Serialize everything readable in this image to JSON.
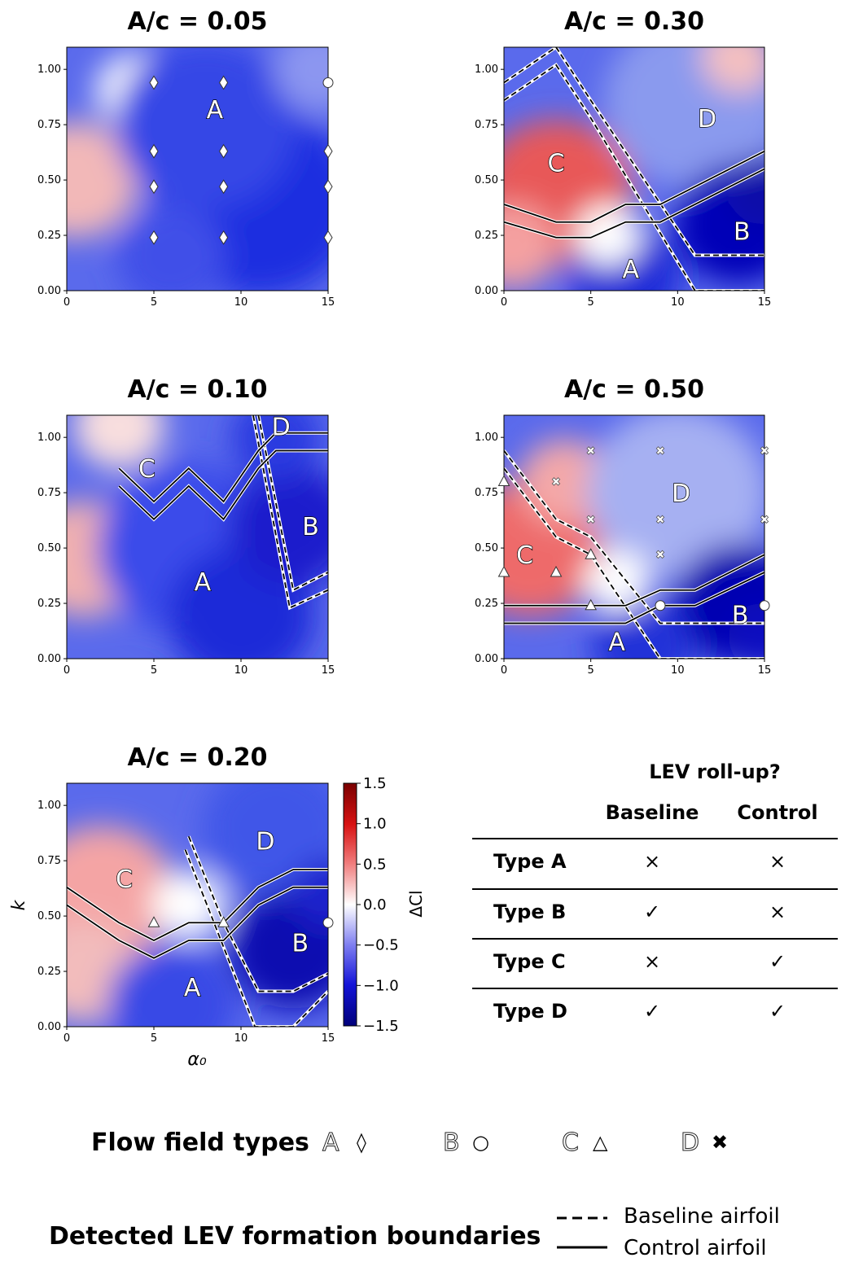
{
  "chart_data": [
    {
      "type": "heatmap",
      "title": "A/c = 0.05",
      "xlim": [
        0,
        15
      ],
      "ylim": [
        0,
        1.1
      ],
      "xticks": [
        "0",
        "5",
        "10",
        "15"
      ],
      "yticks": [
        "0.00",
        "0.25",
        "0.50",
        "0.75",
        "1.00"
      ],
      "regions": [
        {
          "label": "A",
          "x": 8.5,
          "k": 0.82
        }
      ],
      "markers": [
        {
          "type": "diamond",
          "x": 5,
          "k": 0.94
        },
        {
          "type": "diamond",
          "x": 9,
          "k": 0.94
        },
        {
          "type": "circle",
          "x": 15,
          "k": 0.94
        },
        {
          "type": "diamond",
          "x": 5,
          "k": 0.63
        },
        {
          "type": "diamond",
          "x": 9,
          "k": 0.63
        },
        {
          "type": "diamond",
          "x": 15,
          "k": 0.63
        },
        {
          "type": "diamond",
          "x": 5,
          "k": 0.47
        },
        {
          "type": "diamond",
          "x": 9,
          "k": 0.47
        },
        {
          "type": "diamond",
          "x": 15,
          "k": 0.47
        },
        {
          "type": "diamond",
          "x": 5,
          "k": 0.24
        },
        {
          "type": "diamond",
          "x": 9,
          "k": 0.24
        },
        {
          "type": "diamond",
          "x": 15,
          "k": 0.24
        }
      ],
      "baseline_boundaries": [],
      "control_boundaries": []
    },
    {
      "type": "heatmap",
      "title": "A/c = 0.30",
      "xlim": [
        0,
        15
      ],
      "ylim": [
        0,
        1.1
      ],
      "xticks": [
        "0",
        "5",
        "10",
        "15"
      ],
      "yticks": [
        "0.00",
        "0.25",
        "0.50",
        "0.75",
        "1.00"
      ],
      "regions": [
        {
          "label": "C",
          "x": 3,
          "k": 0.58
        },
        {
          "label": "D",
          "x": 11.7,
          "k": 0.78
        },
        {
          "label": "B",
          "x": 13.7,
          "k": 0.27
        },
        {
          "label": "A",
          "x": 7.3,
          "k": 0.1
        }
      ],
      "markers": [],
      "baseline_boundaries": [
        [
          [
            0,
            0.94
          ],
          [
            3,
            1.1
          ],
          [
            5,
            0.86
          ],
          [
            11,
            0.16
          ],
          [
            15,
            0.16
          ]
        ],
        [
          [
            0,
            0.86
          ],
          [
            3,
            1.02
          ],
          [
            5,
            0.78
          ],
          [
            11,
            0.0
          ],
          [
            15,
            0.0
          ]
        ]
      ],
      "control_boundaries": [
        [
          [
            0,
            0.39
          ],
          [
            3,
            0.31
          ],
          [
            5,
            0.31
          ],
          [
            7,
            0.39
          ],
          [
            9,
            0.39
          ],
          [
            15,
            0.63
          ]
        ],
        [
          [
            0,
            0.31
          ],
          [
            3,
            0.24
          ],
          [
            5,
            0.24
          ],
          [
            7,
            0.31
          ],
          [
            9,
            0.31
          ],
          [
            15,
            0.55
          ]
        ]
      ]
    },
    {
      "type": "heatmap",
      "title": "A/c = 0.10",
      "xlim": [
        0,
        15
      ],
      "ylim": [
        0,
        1.1
      ],
      "xticks": [
        "0",
        "5",
        "10",
        "15"
      ],
      "yticks": [
        "0.00",
        "0.25",
        "0.50",
        "0.75",
        "1.00"
      ],
      "regions": [
        {
          "label": "C",
          "x": 4.6,
          "k": 0.86
        },
        {
          "label": "D",
          "x": 12.3,
          "k": 1.05
        },
        {
          "label": "B",
          "x": 14.0,
          "k": 0.6
        },
        {
          "label": "A",
          "x": 7.8,
          "k": 0.35
        }
      ],
      "markers": [],
      "baseline_boundaries": [
        [
          [
            11.0,
            1.1
          ],
          [
            13,
            0.31
          ],
          [
            15,
            0.39
          ]
        ],
        [
          [
            10.7,
            1.1
          ],
          [
            12.8,
            0.23
          ],
          [
            15,
            0.31
          ]
        ]
      ],
      "control_boundaries": [
        [
          [
            3,
            0.86
          ],
          [
            5,
            0.71
          ],
          [
            7,
            0.86
          ],
          [
            9,
            0.71
          ],
          [
            11,
            0.94
          ],
          [
            12,
            1.02
          ],
          [
            15,
            1.02
          ]
        ],
        [
          [
            3,
            0.78
          ],
          [
            5,
            0.63
          ],
          [
            7,
            0.78
          ],
          [
            9,
            0.63
          ],
          [
            11,
            0.86
          ],
          [
            12,
            0.94
          ],
          [
            15,
            0.94
          ]
        ]
      ]
    },
    {
      "type": "heatmap",
      "title": "A/c = 0.50",
      "xlim": [
        0,
        15
      ],
      "ylim": [
        0,
        1.1
      ],
      "xticks": [
        "0",
        "5",
        "10",
        "15"
      ],
      "yticks": [
        "0.00",
        "0.25",
        "0.50",
        "0.75",
        "1.00"
      ],
      "regions": [
        {
          "label": "C",
          "x": 1.2,
          "k": 0.47
        },
        {
          "label": "D",
          "x": 10.2,
          "k": 0.75
        },
        {
          "label": "B",
          "x": 13.6,
          "k": 0.2
        },
        {
          "label": "A",
          "x": 6.5,
          "k": 0.08
        }
      ],
      "markers": [
        {
          "type": "triangle",
          "x": 0,
          "k": 0.8
        },
        {
          "type": "cross",
          "x": 5,
          "k": 0.94
        },
        {
          "type": "cross",
          "x": 9,
          "k": 0.94
        },
        {
          "type": "cross",
          "x": 15,
          "k": 0.94
        },
        {
          "type": "cross",
          "x": 3,
          "k": 0.8
        },
        {
          "type": "cross",
          "x": 5,
          "k": 0.63
        },
        {
          "type": "cross",
          "x": 9,
          "k": 0.63
        },
        {
          "type": "cross",
          "x": 15,
          "k": 0.63
        },
        {
          "type": "triangle",
          "x": 5,
          "k": 0.47
        },
        {
          "type": "cross",
          "x": 9,
          "k": 0.47
        },
        {
          "type": "triangle",
          "x": 0,
          "k": 0.39
        },
        {
          "type": "triangle",
          "x": 3,
          "k": 0.39
        },
        {
          "type": "triangle",
          "x": 5,
          "k": 0.24
        },
        {
          "type": "circle",
          "x": 9,
          "k": 0.24
        },
        {
          "type": "circle",
          "x": 15,
          "k": 0.24
        }
      ],
      "baseline_boundaries": [
        [
          [
            0,
            0.94
          ],
          [
            3,
            0.63
          ],
          [
            5,
            0.55
          ],
          [
            9,
            0.16
          ],
          [
            15,
            0.16
          ]
        ],
        [
          [
            0,
            0.86
          ],
          [
            3,
            0.55
          ],
          [
            5,
            0.47
          ],
          [
            9,
            0.0
          ],
          [
            15,
            0.0
          ]
        ]
      ],
      "control_boundaries": [
        [
          [
            0,
            0.24
          ],
          [
            7,
            0.24
          ],
          [
            9,
            0.31
          ],
          [
            11,
            0.31
          ],
          [
            15,
            0.47
          ]
        ],
        [
          [
            0,
            0.16
          ],
          [
            7,
            0.16
          ],
          [
            9,
            0.24
          ],
          [
            11,
            0.24
          ],
          [
            15,
            0.39
          ]
        ]
      ]
    },
    {
      "type": "heatmap",
      "title": "A/c = 0.20",
      "xlabel": "α₀",
      "ylabel": "k",
      "xlim": [
        0,
        15
      ],
      "ylim": [
        0,
        1.1
      ],
      "xticks": [
        "0",
        "5",
        "10",
        "15"
      ],
      "yticks": [
        "0.00",
        "0.25",
        "0.50",
        "0.75",
        "1.00"
      ],
      "colorbar": {
        "label": "ΔCl",
        "range": [
          -1.5,
          1.5
        ],
        "ticks": [
          "1.5",
          "1.0",
          "0.5",
          "0.0",
          "−0.5",
          "−1.0",
          "−1.5"
        ]
      },
      "regions": [
        {
          "label": "C",
          "x": 3.3,
          "k": 0.67
        },
        {
          "label": "D",
          "x": 11.4,
          "k": 0.84
        },
        {
          "label": "B",
          "x": 13.4,
          "k": 0.38
        },
        {
          "label": "A",
          "x": 7.2,
          "k": 0.18
        }
      ],
      "markers": [
        {
          "type": "triangle",
          "x": 5,
          "k": 0.47
        },
        {
          "type": "triangle",
          "x": 9,
          "k": 0.47
        },
        {
          "type": "circle",
          "x": 15,
          "k": 0.47
        }
      ],
      "baseline_boundaries": [
        [
          [
            7,
            0.86
          ],
          [
            9,
            0.47
          ],
          [
            11,
            0.16
          ],
          [
            13,
            0.16
          ],
          [
            15,
            0.24
          ]
        ],
        [
          [
            6.8,
            0.8
          ],
          [
            8.8,
            0.4
          ],
          [
            10.8,
            0.0
          ],
          [
            13,
            0.0
          ],
          [
            15,
            0.16
          ]
        ]
      ],
      "control_boundaries": [
        [
          [
            0,
            0.63
          ],
          [
            3,
            0.47
          ],
          [
            5,
            0.39
          ],
          [
            7,
            0.47
          ],
          [
            9,
            0.47
          ],
          [
            11,
            0.63
          ],
          [
            13,
            0.71
          ],
          [
            15,
            0.71
          ]
        ],
        [
          [
            0,
            0.55
          ],
          [
            3,
            0.39
          ],
          [
            5,
            0.31
          ],
          [
            7,
            0.39
          ],
          [
            9,
            0.39
          ],
          [
            11,
            0.55
          ],
          [
            13,
            0.63
          ],
          [
            15,
            0.63
          ]
        ]
      ]
    }
  ],
  "table": {
    "title": "LEV roll-up?",
    "col_baseline": "Baseline",
    "col_control": "Control",
    "rows": [
      {
        "type": "Type A",
        "baseline": "×",
        "control": "×"
      },
      {
        "type": "Type B",
        "baseline": "✓",
        "control": "×"
      },
      {
        "type": "Type C",
        "baseline": "×",
        "control": "✓"
      },
      {
        "type": "Type D",
        "baseline": "✓",
        "control": "✓"
      }
    ]
  },
  "legend": {
    "flow_title": "Flow field types",
    "flow_items": [
      {
        "letter": "A",
        "marker": "◊"
      },
      {
        "letter": "B",
        "marker": "○"
      },
      {
        "letter": "C",
        "marker": "△"
      },
      {
        "letter": "D",
        "marker": "✖"
      }
    ],
    "boundary_title": "Detected LEV formation boundaries",
    "baseline_label": "Baseline airfoil",
    "control_label": "Control airfoil"
  },
  "colors": {
    "negative": "#0a0ad0",
    "positive": "#d21010",
    "neutral": "#ffffff"
  }
}
